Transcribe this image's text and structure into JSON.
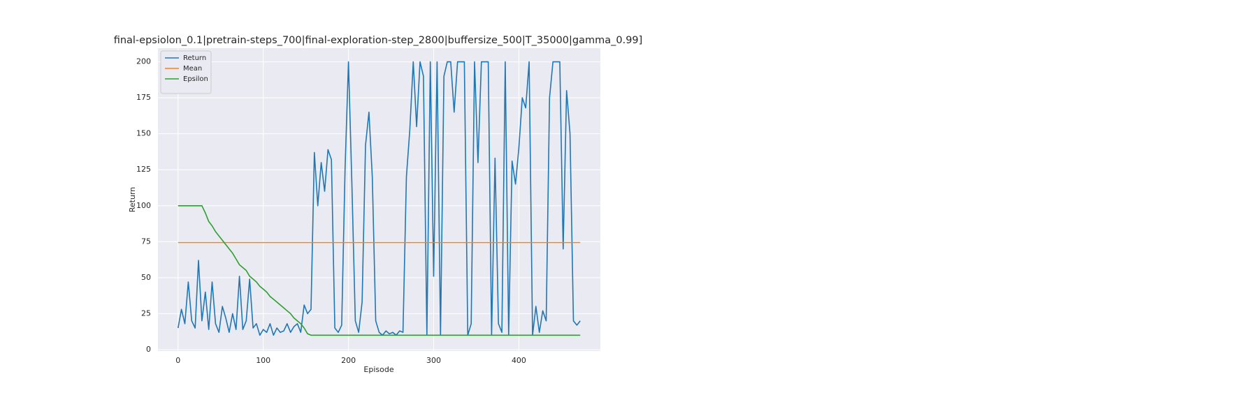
{
  "chart_data": {
    "type": "line",
    "title": "final-epsiolon_0.1|pretrain-steps_700|final-exploration-step_2800|buffersize_500|T_35000|gamma_0.99]",
    "x_label": "Episode",
    "y_label": "Return",
    "x": [
      0,
      4,
      8,
      12,
      16,
      20,
      24,
      28,
      32,
      36,
      40,
      44,
      48,
      52,
      56,
      60,
      64,
      68,
      72,
      76,
      80,
      84,
      88,
      92,
      96,
      100,
      104,
      108,
      112,
      116,
      120,
      124,
      128,
      132,
      136,
      140,
      144,
      148,
      152,
      156,
      160,
      164,
      168,
      172,
      176,
      180,
      184,
      188,
      192,
      196,
      200,
      204,
      208,
      212,
      216,
      220,
      224,
      228,
      232,
      236,
      240,
      244,
      248,
      252,
      256,
      260,
      264,
      268,
      272,
      276,
      280,
      284,
      288,
      292,
      296,
      300,
      304,
      308,
      312,
      316,
      320,
      324,
      328,
      332,
      336,
      340,
      344,
      348,
      352,
      356,
      360,
      364,
      368,
      372,
      376,
      380,
      384,
      388,
      392,
      396,
      400,
      404,
      408,
      412,
      416,
      420,
      424,
      428,
      432,
      436,
      440,
      444,
      448,
      452,
      456,
      460,
      464,
      468,
      472
    ],
    "series": [
      {
        "name": "Return",
        "color": "#1f77b4",
        "values": [
          15,
          28,
          18,
          47,
          20,
          15,
          62,
          20,
          40,
          14,
          47,
          18,
          12,
          30,
          22,
          12,
          25,
          14,
          51,
          14,
          20,
          49,
          15,
          18,
          10,
          14,
          12,
          18,
          10,
          15,
          12,
          13,
          18,
          12,
          16,
          18,
          12,
          31,
          25,
          28,
          137,
          100,
          130,
          110,
          139,
          132,
          15,
          12,
          17,
          125,
          200,
          115,
          20,
          12,
          33,
          142,
          165,
          120,
          20,
          12,
          10,
          13,
          11,
          12,
          10,
          13,
          12,
          120,
          153,
          200,
          155,
          200,
          190,
          10,
          200,
          51,
          200,
          10,
          190,
          200,
          200,
          165,
          200,
          200,
          200,
          10,
          18,
          200,
          130,
          200,
          200,
          200,
          10,
          133,
          18,
          12,
          200,
          10,
          131,
          115,
          140,
          175,
          168,
          200,
          10,
          30,
          12,
          27,
          20,
          175,
          200,
          200,
          200,
          70,
          180,
          150,
          20,
          17,
          20
        ]
      },
      {
        "name": "Mean",
        "color": "#ff7f0e",
        "values": [
          74.4,
          74.4,
          74.4,
          74.4,
          74.4,
          74.4,
          74.4,
          74.4,
          74.4,
          74.4,
          74.4,
          74.4,
          74.4,
          74.4,
          74.4,
          74.4,
          74.4,
          74.4,
          74.4,
          74.4,
          74.4,
          74.4,
          74.4,
          74.4,
          74.4,
          74.4,
          74.4,
          74.4,
          74.4,
          74.4,
          74.4,
          74.4,
          74.4,
          74.4,
          74.4,
          74.4,
          74.4,
          74.4,
          74.4,
          74.4,
          74.4,
          74.4,
          74.4,
          74.4,
          74.4,
          74.4,
          74.4,
          74.4,
          74.4,
          74.4,
          74.4,
          74.4,
          74.4,
          74.4,
          74.4,
          74.4,
          74.4,
          74.4,
          74.4,
          74.4,
          74.4,
          74.4,
          74.4,
          74.4,
          74.4,
          74.4,
          74.4,
          74.4,
          74.4,
          74.4,
          74.4,
          74.4,
          74.4,
          74.4,
          74.4,
          74.4,
          74.4,
          74.4,
          74.4,
          74.4,
          74.4,
          74.4,
          74.4,
          74.4,
          74.4,
          74.4,
          74.4,
          74.4,
          74.4,
          74.4,
          74.4,
          74.4,
          74.4,
          74.4,
          74.4,
          74.4,
          74.4,
          74.4,
          74.4,
          74.4,
          74.4,
          74.4,
          74.4,
          74.4,
          74.4,
          74.4,
          74.4,
          74.4,
          74.4,
          74.4,
          74.4,
          74.4,
          74.4,
          74.4,
          74.4,
          74.4,
          74.4,
          74.4,
          74.4
        ]
      },
      {
        "name": "Epsilon",
        "color": "#2ca02c",
        "values": [
          100,
          100,
          100,
          100,
          100,
          100,
          100,
          100,
          95,
          89,
          86,
          82,
          79,
          76,
          73,
          70,
          67,
          63,
          59,
          57,
          55,
          51,
          49,
          47,
          44,
          42,
          40,
          37,
          35,
          33,
          31,
          29,
          27,
          25,
          22,
          20,
          18,
          15,
          11,
          10,
          10,
          10,
          10,
          10,
          10,
          10,
          10,
          10,
          10,
          10,
          10,
          10,
          10,
          10,
          10,
          10,
          10,
          10,
          10,
          10,
          10,
          10,
          10,
          10,
          10,
          10,
          10,
          10,
          10,
          10,
          10,
          10,
          10,
          10,
          10,
          10,
          10,
          10,
          10,
          10,
          10,
          10,
          10,
          10,
          10,
          10,
          10,
          10,
          10,
          10,
          10,
          10,
          10,
          10,
          10,
          10,
          10,
          10,
          10,
          10,
          10,
          10,
          10,
          10,
          10,
          10,
          10,
          10,
          10,
          10,
          10,
          10,
          10,
          10,
          10,
          10,
          10,
          10,
          10
        ]
      }
    ],
    "xlim": [
      -23.6,
      495.6
    ],
    "xticks": [
      0,
      100,
      200,
      300,
      400
    ],
    "ylim": [
      -1,
      209.5
    ],
    "yticks": [
      0,
      25,
      50,
      75,
      100,
      125,
      150,
      175,
      200
    ],
    "grid": true,
    "legend": "upper left"
  }
}
